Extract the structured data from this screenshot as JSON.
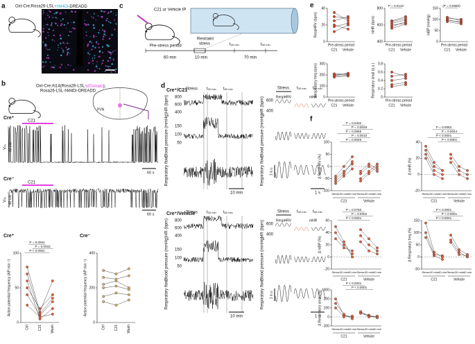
{
  "figure": {
    "a": [
      "a",
      "Oxt-Cre;Rosa26-LSL-",
      "HM4Di",
      "-DREADD",
      "Bregma −0.58 mm",
      "3V",
      "OT",
      "HA-hM4Di",
      "Merge"
    ],
    "b": [
      "b",
      "Oxt-Cre;Ai14(Rosa26-LSL-",
      "tdTomato",
      ");",
      "Rosa26-LSL-hM4Di-DREADD",
      "PVN",
      "Cre⁺",
      "C21",
      "Vₘ",
      "40 mV",
      "60 s",
      "Cre⁻",
      "C21",
      "60 s",
      "40 mV",
      "Vₘ"
    ],
    "c": [
      "c",
      "C21 or Vehicle IP",
      "Restraint",
      "stress",
      "Pre-stress period",
      "60 min",
      "10 min",
      "70 min",
      "t",
      "30 min",
      "t",
      "60 min"
    ],
    "d": {
      "label": "d",
      "top": [
        "Cre⁺/C21",
        "Stress",
        "t",
        "30 min",
        "t",
        "60 min",
        "HR (bpm)",
        "800",
        "600",
        "400",
        "Blood pressure (mmHg)",
        "150",
        "100",
        "50",
        "Respiratory flow",
        "10 min",
        "HR (bpm)",
        "600",
        "400",
        "RespHRV",
        "mHR",
        "Blood pressure (mmHg)",
        "Respiratory flow",
        "1 a.u.",
        "1 s",
        "Stress",
        "t",
        "30 min",
        "t",
        "60 min"
      ],
      "bottom": [
        "Cre⁺/Vehicle",
        "Stress",
        "t",
        "30 min",
        "t",
        "60 min",
        "HR (bpm)",
        "800",
        "600",
        "400",
        "Blood pressure (mmHg)",
        "150",
        "100",
        "50",
        "Respiratory flow",
        "10 min",
        "HR (bpm)",
        "600",
        "400",
        "RespHRV",
        "mHR",
        "Blood pressure (mmHg)",
        "Respiratory flow",
        "1 a.u.",
        "1 s",
        "Stress",
        "t",
        "30 min",
        "t",
        "60 min"
      ]
    },
    "e": [
      "e"
    ],
    "f": [
      "f"
    ]
  },
  "chart_data": [
    {
      "type": "line",
      "title": "Cre⁺",
      "ylabel": "Action potential frequency (AP min⁻¹)",
      "categories": [
        "Ctrl",
        "C21",
        "Wash"
      ],
      "ylim": [
        0,
        100
      ],
      "yticks": [
        0,
        50,
        100
      ],
      "color": "#e8603c",
      "series": [
        {
          "values": [
            40,
            10,
            30
          ]
        },
        {
          "values": [
            60,
            5,
            20
          ]
        },
        {
          "values": [
            80,
            15,
            60
          ]
        },
        {
          "values": [
            25,
            8,
            12
          ]
        },
        {
          "values": [
            50,
            20,
            40
          ]
        },
        {
          "values": [
            70,
            12,
            35
          ]
        }
      ],
      "annotations": [
        "P = 0.0004",
        "P = 0.0033",
        "P < 0.0001"
      ]
    },
    {
      "type": "line",
      "title": "Cre⁻",
      "ylabel": "Action potential frequency (AP min⁻¹)",
      "categories": [
        "Ctrl",
        "C21",
        "Wash"
      ],
      "ylim": [
        0,
        400
      ],
      "yticks": [
        0,
        200,
        400
      ],
      "color": "#d9b26b",
      "series": [
        {
          "values": [
            300,
            280,
            310
          ]
        },
        {
          "values": [
            220,
            240,
            200
          ]
        },
        {
          "values": [
            150,
            170,
            160
          ]
        },
        {
          "values": [
            260,
            250,
            270
          ]
        },
        {
          "values": [
            120,
            100,
            130
          ]
        },
        {
          "values": [
            200,
            210,
            190
          ]
        }
      ]
    },
    {
      "type": "line",
      "ylabel": "RespHRV (bpm)",
      "xlabel": "Pre-stress period",
      "categories": [
        "C21",
        "Vehicle"
      ],
      "ylim": [
        0,
        40
      ],
      "yticks": [
        0,
        20,
        40
      ],
      "color": "#d8452b",
      "series": [
        {
          "values": [
            25,
            30
          ]
        },
        {
          "values": [
            20,
            15
          ]
        },
        {
          "values": [
            30,
            28
          ]
        },
        {
          "values": [
            18,
            22
          ]
        },
        {
          "values": [
            35,
            25
          ]
        },
        {
          "values": [
            12,
            20
          ]
        }
      ]
    },
    {
      "type": "line",
      "ylabel": "mHR (bpm)",
      "xlabel": "Pre-stress period",
      "categories": [
        "C21",
        "Vehicle"
      ],
      "ylim": [
        400,
        800
      ],
      "yticks": [
        400,
        600,
        800
      ],
      "color": "#d8452b",
      "series": [
        {
          "values": [
            620,
            660
          ]
        },
        {
          "values": [
            580,
            640
          ]
        },
        {
          "values": [
            650,
            700
          ]
        },
        {
          "values": [
            600,
            620
          ]
        },
        {
          "values": [
            560,
            610
          ]
        },
        {
          "values": [
            640,
            680
          ]
        }
      ],
      "annotations": [
        "P = 0.0132"
      ]
    },
    {
      "type": "line",
      "ylabel": "mBP (mmHg)",
      "xlabel": "Pre-stress period",
      "categories": [
        "C21",
        "Vehicle"
      ],
      "ylim": [
        0,
        150
      ],
      "yticks": [
        0,
        50,
        100,
        150
      ],
      "color": "#d8452b",
      "series": [
        {
          "values": [
            95,
            90
          ]
        },
        {
          "values": [
            100,
            85
          ]
        },
        {
          "values": [
            105,
            100
          ]
        },
        {
          "values": [
            90,
            80
          ]
        },
        {
          "values": [
            110,
            95
          ]
        }
      ],
      "annotations": [
        "(P = 0.0680)"
      ]
    },
    {
      "type": "line",
      "ylabel": "Respiratory freq (cpm)",
      "xlabel": "Pre-stress period",
      "categories": [
        "C21",
        "Vehicle"
      ],
      "ylim": [
        0,
        300
      ],
      "yticks": [
        0,
        100,
        200,
        300
      ],
      "color": "#d8452b",
      "series": [
        {
          "values": [
            190,
            200
          ]
        },
        {
          "values": [
            200,
            210
          ]
        },
        {
          "values": [
            180,
            190
          ]
        },
        {
          "values": [
            210,
            205
          ]
        },
        {
          "values": [
            195,
            215
          ]
        }
      ]
    },
    {
      "type": "line",
      "ylabel": "Respiratory ampl (a.u.)",
      "xlabel": "Pre-stress period",
      "categories": [
        "C21",
        "Vehicle"
      ],
      "ylim": [
        0,
        0.8
      ],
      "yticks": [
        0,
        0.2,
        0.4,
        0.6,
        0.8
      ],
      "color": "#d8452b",
      "series": [
        {
          "values": [
            0.5,
            0.55
          ]
        },
        {
          "values": [
            0.3,
            0.35
          ]
        },
        {
          "values": [
            0.25,
            0.3
          ]
        },
        {
          "values": [
            0.6,
            0.5
          ]
        },
        {
          "values": [
            0.4,
            0.45
          ]
        }
      ]
    },
    {
      "type": "line",
      "ylabel": "Δ RespHRV (%)",
      "categories": [
        "Stress",
        "30 min",
        "60 min",
        "Stress",
        "30 min",
        "60 min"
      ],
      "groups": [
        "C21",
        "Vehicle"
      ],
      "ylim": [
        -100,
        100
      ],
      "yticks": [
        -100,
        -50,
        0,
        50,
        100
      ],
      "zero_line": true,
      "color": "#e0603c",
      "series": [
        {
          "values": [
            -50,
            -20,
            10,
            null,
            null,
            null
          ]
        },
        {
          "values": [
            -60,
            -30,
            20,
            null,
            null,
            null
          ]
        },
        {
          "values": [
            -40,
            0,
            40,
            null,
            null,
            null
          ]
        },
        {
          "values": [
            -70,
            -40,
            -10,
            null,
            null,
            null
          ]
        },
        {
          "values": [
            null,
            null,
            null,
            -30,
            0,
            -20
          ]
        },
        {
          "values": [
            null,
            null,
            null,
            -50,
            -20,
            10
          ]
        },
        {
          "values": [
            null,
            null,
            null,
            -20,
            10,
            -10
          ]
        },
        {
          "values": [
            null,
            null,
            null,
            -60,
            -30,
            0
          ]
        }
      ],
      "annotations": [
        "P = 0.0402",
        "P = 0.0028",
        "P = 0.0965",
        "P = 0.0010",
        "P = 0.0025"
      ]
    },
    {
      "type": "line",
      "ylabel": "Δ mHR (%)",
      "categories": [
        "Stress",
        "30 min",
        "60 min",
        "Stress",
        "30 min",
        "60 min"
      ],
      "groups": [
        "C21",
        "Vehicle"
      ],
      "ylim": [
        -20,
        40
      ],
      "yticks": [
        -20,
        0,
        20,
        40
      ],
      "zero_line": true,
      "color": "#e0603c",
      "series": [
        {
          "values": [
            25,
            5,
            0,
            null,
            null,
            null
          ]
        },
        {
          "values": [
            30,
            10,
            5,
            null,
            null,
            null
          ]
        },
        {
          "values": [
            20,
            0,
            -5,
            null,
            null,
            null
          ]
        },
        {
          "values": [
            35,
            15,
            5,
            null,
            null,
            null
          ]
        },
        {
          "values": [
            null,
            null,
            null,
            20,
            5,
            0
          ]
        },
        {
          "values": [
            null,
            null,
            null,
            25,
            10,
            5
          ]
        },
        {
          "values": [
            null,
            null,
            null,
            15,
            0,
            -5
          ]
        }
      ],
      "annotations": [
        "P = 0.0063",
        "P = 0.0044",
        "P < 0.0001",
        "P < 0.0001"
      ]
    },
    {
      "type": "line",
      "ylabel": "Δ mBP (%)",
      "categories": [
        "Stress",
        "30 min",
        "60 min",
        "Stress",
        "30 min",
        "60 min"
      ],
      "groups": [
        "C21",
        "Vehicle"
      ],
      "ylim": [
        -20,
        60
      ],
      "yticks": [
        -20,
        0,
        20,
        40,
        60
      ],
      "zero_line": true,
      "color": "#e0603c",
      "series": [
        {
          "values": [
            40,
            20,
            5,
            null,
            null,
            null
          ]
        },
        {
          "values": [
            30,
            15,
            10,
            null,
            null,
            null
          ]
        },
        {
          "values": [
            50,
            25,
            0,
            null,
            null,
            null
          ]
        },
        {
          "values": [
            null,
            null,
            null,
            35,
            20,
            10
          ]
        },
        {
          "values": [
            null,
            null,
            null,
            25,
            10,
            5
          ]
        },
        {
          "values": [
            null,
            null,
            null,
            45,
            30,
            15
          ]
        }
      ],
      "annotations": [
        "P = 0.0760",
        "P = 0.0002",
        "P < 0.0001"
      ]
    },
    {
      "type": "line",
      "ylabel": "Δ Respiratory freq (%)",
      "categories": [
        "Stress",
        "30 min",
        "60 min",
        "Stress",
        "30 min",
        "60 min"
      ],
      "groups": [
        "C21",
        "Vehicle"
      ],
      "ylim": [
        -50,
        150
      ],
      "yticks": [
        -50,
        0,
        50,
        100,
        150
      ],
      "zero_line": true,
      "color": "#e0603c",
      "series": [
        {
          "values": [
            100,
            10,
            5,
            null,
            null,
            null
          ]
        },
        {
          "values": [
            140,
            20,
            0,
            null,
            null,
            null
          ]
        },
        {
          "values": [
            80,
            5,
            -10,
            null,
            null,
            null
          ]
        },
        {
          "values": [
            null,
            null,
            null,
            90,
            30,
            10
          ]
        },
        {
          "values": [
            null,
            null,
            null,
            70,
            20,
            0
          ]
        },
        {
          "values": [
            null,
            null,
            null,
            60,
            10,
            5
          ]
        }
      ],
      "annotations": [
        "P < 0.0001",
        "P < 0.0001",
        "P < 0.0001"
      ]
    },
    {
      "type": "line",
      "ylabel": "Δ Respiratory ampl (%)",
      "categories": [
        "Stress",
        "30 min",
        "60 min",
        "Stress",
        "30 min",
        "60 min"
      ],
      "groups": [
        "C21",
        "Vehicle"
      ],
      "ylim": [
        -100,
        300
      ],
      "yticks": [
        -100,
        0,
        100,
        200,
        300
      ],
      "zero_line": true,
      "color": "#e0603c",
      "series": [
        {
          "values": [
            200,
            20,
            0,
            null,
            null,
            null
          ]
        },
        {
          "values": [
            150,
            30,
            -20,
            null,
            null,
            null
          ]
        },
        {
          "values": [
            100,
            0,
            10,
            null,
            null,
            null
          ]
        },
        {
          "values": [
            null,
            null,
            null,
            50,
            20,
            0
          ]
        },
        {
          "values": [
            null,
            null,
            null,
            40,
            10,
            -10
          ]
        },
        {
          "values": [
            null,
            null,
            null,
            60,
            0,
            10
          ]
        }
      ],
      "annotations": [
        "P < 0.0001",
        "P < 0.0001"
      ]
    }
  ]
}
